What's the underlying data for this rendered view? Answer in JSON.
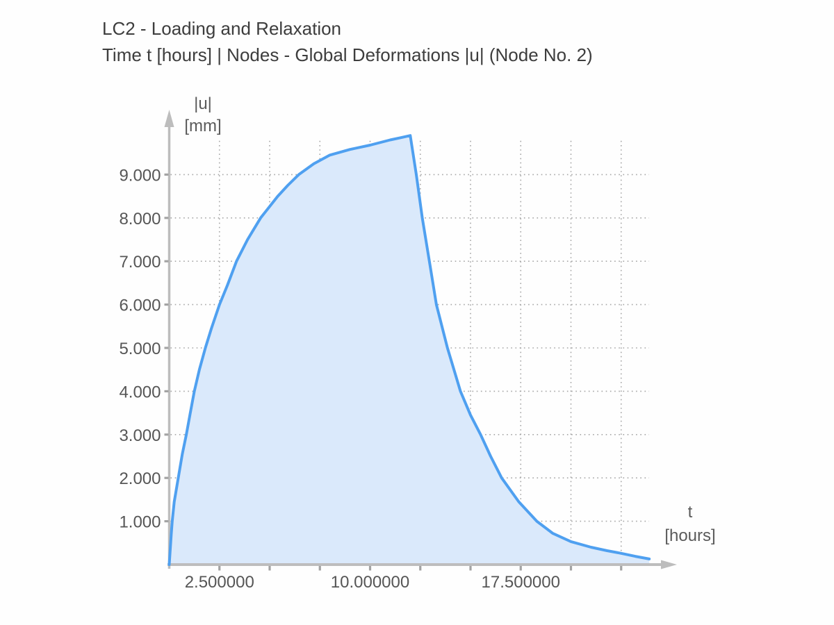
{
  "header": {
    "title_line1": "LC2 - Loading and Relaxation",
    "title_line2": "Time t [hours] | Nodes - Global Deformations |u| (Node No. 2)"
  },
  "axis_labels": {
    "y_symbol": "|u|",
    "y_unit": "[mm]",
    "x_symbol": "t",
    "x_unit": "[hours]"
  },
  "colors": {
    "background": "#fefefe",
    "title_text": "#3d3d3d",
    "tick_text": "#565656",
    "axis": "#bdbdbd",
    "tick_mark": "#a3a3a3",
    "grid": "#a5a5a5",
    "curve": "#4fa0f0",
    "curve_fill": "#dae9fb"
  },
  "chart_data": {
    "type": "area",
    "title": "LC2 - Loading and Relaxation",
    "subtitle": "Time t [hours] | Nodes - Global Deformations |u| (Node No. 2)",
    "xlabel": "t [hours]",
    "ylabel": "|u| [mm]",
    "grid": "dotted",
    "legend": "none",
    "x_axis": {
      "min": 0,
      "max": 24.9,
      "grid_step": 2.5,
      "grid_last": 22.5,
      "ticks": [
        {
          "value": 2.5,
          "label": "2.500000"
        },
        {
          "value": 10.0,
          "label": "10.000000"
        },
        {
          "value": 17.5,
          "label": "17.500000"
        }
      ]
    },
    "y_axis": {
      "min": 0,
      "max": 10.5,
      "grid_step": 1.0,
      "grid_last": 9.0,
      "ticks": [
        {
          "value": 1,
          "label": "1.000"
        },
        {
          "value": 2,
          "label": "2.000"
        },
        {
          "value": 3,
          "label": "3.000"
        },
        {
          "value": 4,
          "label": "4.000"
        },
        {
          "value": 5,
          "label": "5.000"
        },
        {
          "value": 6,
          "label": "6.000"
        },
        {
          "value": 7,
          "label": "7.000"
        },
        {
          "value": 8,
          "label": "8.000"
        },
        {
          "value": 9,
          "label": "9.000"
        }
      ]
    },
    "series": [
      {
        "name": "Global Deformations |u| (Node No. 2)",
        "color": "#4fa0f0",
        "fill_color": "#dae9fb",
        "peak": {
          "t": 12.0,
          "u": 9.9
        },
        "segments": {
          "loading": [
            [
              0,
              0
            ],
            [
              0.1,
              0.7
            ],
            [
              0.15,
              1.0
            ],
            [
              0.25,
              1.45
            ],
            [
              0.45,
              2.0
            ],
            [
              0.65,
              2.55
            ],
            [
              0.85,
              3.0
            ],
            [
              1.05,
              3.5
            ],
            [
              1.25,
              4.0
            ],
            [
              1.5,
              4.5
            ],
            [
              1.8,
              5.0
            ],
            [
              2.1,
              5.45
            ],
            [
              2.5,
              6.0
            ],
            [
              2.9,
              6.45
            ],
            [
              3.35,
              7.0
            ],
            [
              3.9,
              7.5
            ],
            [
              4.55,
              8.0
            ],
            [
              5.4,
              8.5
            ],
            [
              5.9,
              8.75
            ],
            [
              6.45,
              9.0
            ],
            [
              7.2,
              9.25
            ],
            [
              8.0,
              9.45
            ],
            [
              9.0,
              9.58
            ],
            [
              10.0,
              9.68
            ],
            [
              11.0,
              9.8
            ],
            [
              11.5,
              9.85
            ],
            [
              12.0,
              9.9
            ]
          ],
          "relaxation": [
            [
              12.1,
              9.6
            ],
            [
              12.3,
              9.0
            ],
            [
              12.6,
              8.0
            ],
            [
              12.95,
              7.0
            ],
            [
              13.3,
              6.0
            ],
            [
              13.85,
              5.0
            ],
            [
              14.5,
              4.0
            ],
            [
              15.0,
              3.45
            ],
            [
              15.5,
              3.0
            ],
            [
              16.0,
              2.5
            ],
            [
              16.55,
              2.0
            ],
            [
              17.4,
              1.45
            ],
            [
              18.3,
              1.0
            ],
            [
              19.1,
              0.72
            ],
            [
              20.0,
              0.53
            ],
            [
              21.0,
              0.4
            ],
            [
              21.8,
              0.32
            ],
            [
              22.5,
              0.26
            ],
            [
              23.2,
              0.19
            ],
            [
              23.9,
              0.13
            ]
          ]
        }
      }
    ]
  }
}
